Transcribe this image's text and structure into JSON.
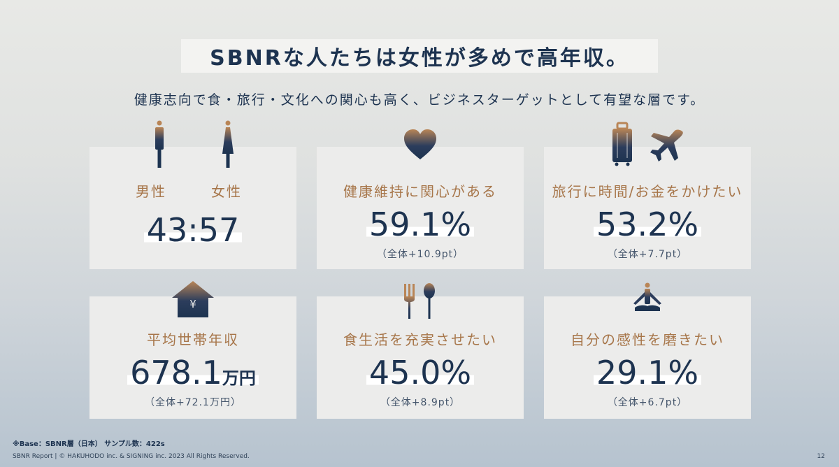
{
  "title": "SBNRな人たちは女性が多めで高年収。",
  "subtitle": "健康志向で食・旅行・文化への関心も高く、ビジネスターゲットとして有望な層です。",
  "cards": [
    {
      "label_male": "男性",
      "label_female": "女性",
      "value": "43:57",
      "icons": [
        "male-figure-icon",
        "female-figure-icon"
      ]
    },
    {
      "label": "健康維持に関心がある",
      "value": "59.1%",
      "note": "（全体+10.9pt）",
      "icons": [
        "heart-icon"
      ]
    },
    {
      "label": "旅行に時間/お金をかけたい",
      "value": "53.2%",
      "note": "（全体+7.7pt）",
      "icons": [
        "suitcase-icon",
        "airplane-icon"
      ]
    },
    {
      "label": "平均世帯年収",
      "value": "678.1",
      "unit": "万円",
      "note": "（全体+72.1万円）",
      "icon_text": "¥",
      "icons": [
        "house-yen-icon"
      ]
    },
    {
      "label": "食生活を充実させたい",
      "value": "45.0%",
      "note": "（全体+8.9pt）",
      "icons": [
        "fork-spoon-icon"
      ]
    },
    {
      "label": "自分の感性を磨きたい",
      "value": "29.1%",
      "note": "（全体+6.7pt）",
      "icons": [
        "meditation-icon"
      ]
    }
  ],
  "footnote": "※Base：SBNR層（日本） サンプル数：422s",
  "copyright": "SBNR Report | © HAKUHODO inc. & SIGNING inc. 2023 All Rights Reserved.",
  "page_number": "12",
  "colors": {
    "navy": "#1d3350",
    "gold": "#a7764a",
    "card": "#ececeb"
  }
}
